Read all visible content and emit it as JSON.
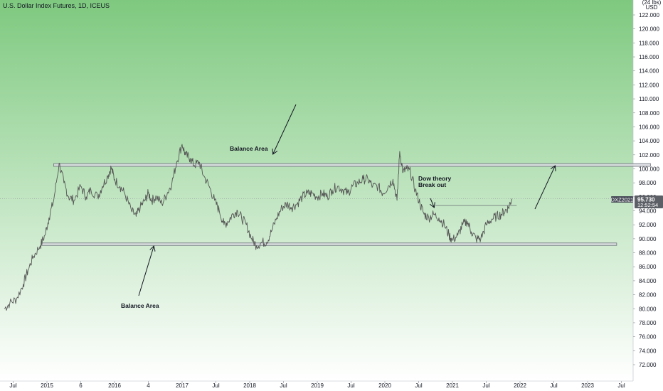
{
  "header": {
    "title": "U.S. Dollar Index Futures, 1D, ICEUS"
  },
  "colors": {
    "bg_top": "#7ec97f",
    "bg_bottom": "#ffffff",
    "price_line": "#555555",
    "zone_fill": "#d9dbe0",
    "zone_stroke": "#6b6f78",
    "badge_bg": "#4a4e5a",
    "price_tag_bg": "#5c5f66"
  },
  "chart_data": {
    "type": "line",
    "title": "U.S. Dollar Index Futures, 1D, ICEUS",
    "y_axis_unit": "USD",
    "y_axis_top_label": "(24 lbs)",
    "xlabel": "",
    "ylabel": "",
    "ylim": [
      70.2,
      124.6
    ],
    "xlim": [
      2014.5,
      2023.8
    ],
    "grid": false,
    "y_ticks": [
      72,
      74,
      76,
      78,
      80,
      82,
      84,
      86,
      88,
      90,
      92,
      94,
      96,
      98,
      100,
      102,
      104,
      106,
      108,
      110,
      112,
      114,
      116,
      118,
      120,
      122
    ],
    "y_tick_labels": [
      "72.000",
      "74.000",
      "76.000",
      "78.000",
      "80.000",
      "82.000",
      "84.000",
      "86.000",
      "88.000",
      "90.000",
      "92.000",
      "94.000",
      "96.000",
      "98.000",
      "100.000",
      "102.000",
      "104.000",
      "106.000",
      "108.000",
      "110.000",
      "112.000",
      "114.000",
      "116.000",
      "118.000",
      "120.000",
      "122.000"
    ],
    "x_ticks": [
      {
        "label": "Jul",
        "t": 2014.5
      },
      {
        "label": "2015",
        "t": 2015.0
      },
      {
        "label": "6",
        "t": 2015.5
      },
      {
        "label": "2016",
        "t": 2016.0
      },
      {
        "label": "4",
        "t": 2016.5
      },
      {
        "label": "2017",
        "t": 2017.0
      },
      {
        "label": "Jul",
        "t": 2017.5
      },
      {
        "label": "2018",
        "t": 2018.0
      },
      {
        "label": "Jul",
        "t": 2018.5
      },
      {
        "label": "2019",
        "t": 2019.0
      },
      {
        "label": "Jul",
        "t": 2019.5
      },
      {
        "label": "2020",
        "t": 2020.0
      },
      {
        "label": "Jul",
        "t": 2020.5
      },
      {
        "label": "2021",
        "t": 2021.0
      },
      {
        "label": "Jul",
        "t": 2021.5
      },
      {
        "label": "2022",
        "t": 2022.0
      },
      {
        "label": "Jul",
        "t": 2022.5
      },
      {
        "label": "2023",
        "t": 2023.0
      },
      {
        "label": "Jul",
        "t": 2023.5
      }
    ],
    "series": [
      {
        "points": [
          [
            2014.37,
            80.0
          ],
          [
            2014.45,
            80.8
          ],
          [
            2014.55,
            81.4
          ],
          [
            2014.65,
            83.5
          ],
          [
            2014.72,
            85.5
          ],
          [
            2014.8,
            87.5
          ],
          [
            2014.9,
            89.0
          ],
          [
            2014.97,
            90.5
          ],
          [
            2015.03,
            93.0
          ],
          [
            2015.1,
            95.5
          ],
          [
            2015.18,
            100.8
          ],
          [
            2015.25,
            98.0
          ],
          [
            2015.32,
            96.0
          ],
          [
            2015.4,
            95.5
          ],
          [
            2015.5,
            97.5
          ],
          [
            2015.58,
            96.0
          ],
          [
            2015.65,
            97.0
          ],
          [
            2015.75,
            96.0
          ],
          [
            2015.82,
            97.5
          ],
          [
            2015.9,
            99.0
          ],
          [
            2015.95,
            100.2
          ],
          [
            2016.0,
            98.5
          ],
          [
            2016.08,
            97.5
          ],
          [
            2016.15,
            96.5
          ],
          [
            2016.25,
            94.0
          ],
          [
            2016.32,
            93.2
          ],
          [
            2016.38,
            94.5
          ],
          [
            2016.45,
            95.5
          ],
          [
            2016.5,
            96.5
          ],
          [
            2016.55,
            95.5
          ],
          [
            2016.62,
            96.0
          ],
          [
            2016.7,
            95.0
          ],
          [
            2016.78,
            96.5
          ],
          [
            2016.85,
            98.0
          ],
          [
            2016.92,
            101.0
          ],
          [
            2017.0,
            103.5
          ],
          [
            2017.05,
            102.0
          ],
          [
            2017.12,
            101.5
          ],
          [
            2017.18,
            100.5
          ],
          [
            2017.25,
            101.0
          ],
          [
            2017.32,
            99.0
          ],
          [
            2017.4,
            97.5
          ],
          [
            2017.48,
            95.5
          ],
          [
            2017.55,
            94.0
          ],
          [
            2017.62,
            92.0
          ],
          [
            2017.68,
            92.5
          ],
          [
            2017.75,
            93.5
          ],
          [
            2017.82,
            94.0
          ],
          [
            2017.88,
            93.0
          ],
          [
            2017.95,
            92.0
          ],
          [
            2018.03,
            90.0
          ],
          [
            2018.1,
            89.0
          ],
          [
            2018.18,
            89.5
          ],
          [
            2018.25,
            89.5
          ],
          [
            2018.32,
            91.0
          ],
          [
            2018.4,
            93.0
          ],
          [
            2018.48,
            94.5
          ],
          [
            2018.55,
            95.0
          ],
          [
            2018.62,
            94.5
          ],
          [
            2018.7,
            95.0
          ],
          [
            2018.78,
            96.0
          ],
          [
            2018.85,
            96.5
          ],
          [
            2018.92,
            96.5
          ],
          [
            2019.0,
            96.0
          ],
          [
            2019.08,
            96.5
          ],
          [
            2019.15,
            96.0
          ],
          [
            2019.22,
            97.0
          ],
          [
            2019.3,
            97.5
          ],
          [
            2019.38,
            97.0
          ],
          [
            2019.45,
            96.5
          ],
          [
            2019.52,
            97.5
          ],
          [
            2019.6,
            98.0
          ],
          [
            2019.68,
            98.5
          ],
          [
            2019.75,
            98.5
          ],
          [
            2019.82,
            97.5
          ],
          [
            2019.9,
            97.5
          ],
          [
            2019.97,
            96.5
          ],
          [
            2020.05,
            97.5
          ],
          [
            2020.12,
            98.5
          ],
          [
            2020.18,
            95.5
          ],
          [
            2020.22,
            102.5
          ],
          [
            2020.27,
            99.5
          ],
          [
            2020.32,
            100.0
          ],
          [
            2020.38,
            99.5
          ],
          [
            2020.45,
            97.0
          ],
          [
            2020.52,
            95.0
          ],
          [
            2020.58,
            93.5
          ],
          [
            2020.65,
            93.0
          ],
          [
            2020.72,
            93.5
          ],
          [
            2020.8,
            93.0
          ],
          [
            2020.88,
            92.0
          ],
          [
            2020.95,
            90.5
          ],
          [
            2021.0,
            89.8
          ],
          [
            2021.08,
            90.5
          ],
          [
            2021.15,
            92.0
          ],
          [
            2021.22,
            92.5
          ],
          [
            2021.28,
            91.0
          ],
          [
            2021.35,
            90.0
          ],
          [
            2021.42,
            90.0
          ],
          [
            2021.5,
            92.0
          ],
          [
            2021.58,
            92.8
          ],
          [
            2021.65,
            93.2
          ],
          [
            2021.72,
            93.5
          ],
          [
            2021.78,
            94.0
          ],
          [
            2021.83,
            94.5
          ],
          [
            2021.88,
            95.73
          ]
        ]
      }
    ],
    "annotations": {
      "balance_top": "Balance Area",
      "balance_bottom": "Balance Area",
      "dow": [
        "Dow theory",
        "Break out"
      ]
    },
    "zones": [
      {
        "t1": 2015.1,
        "t2": 2023.93,
        "y1": 100.35,
        "y2": 100.75
      },
      {
        "t1": 2014.92,
        "t2": 2023.43,
        "y1": 89.05,
        "y2": 89.4
      }
    ],
    "breakout_level": {
      "y": 94.75,
      "t1": 2020.75,
      "t2": 2021.95
    },
    "current": {
      "symbol": "DXZ2021",
      "price": "95.730",
      "countdown": "12:52:54",
      "value": 95.73
    }
  }
}
